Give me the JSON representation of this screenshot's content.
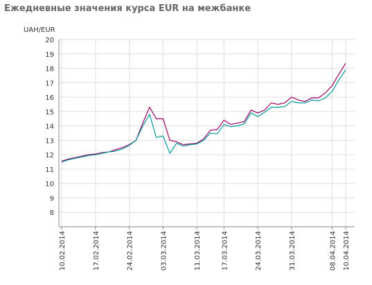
{
  "chart_data": {
    "type": "line",
    "title": "Ежедневные значения курса EUR на межбанке",
    "y_label": "UAH/EUR",
    "categories": [
      "10.02.2014",
      null,
      null,
      null,
      null,
      "17.02.2014",
      null,
      null,
      null,
      null,
      "24.02.2014",
      null,
      null,
      null,
      null,
      "03.03.2014",
      null,
      null,
      null,
      null,
      "11.03.2014",
      null,
      null,
      null,
      "17.03.2014",
      null,
      null,
      null,
      null,
      "24.03.2014",
      null,
      null,
      null,
      null,
      "31.03.2014",
      null,
      null,
      null,
      null,
      null,
      "08.04.2014",
      null,
      "10.04.2014"
    ],
    "series": [
      {
        "color": "#990066",
        "values": [
          11.55,
          11.7,
          11.8,
          11.9,
          12.0,
          12.05,
          12.15,
          12.2,
          12.35,
          12.5,
          12.7,
          13.0,
          14.2,
          15.3,
          14.5,
          14.5,
          13.0,
          12.9,
          12.7,
          12.75,
          12.8,
          13.1,
          13.7,
          13.75,
          14.4,
          14.1,
          14.2,
          14.3,
          15.1,
          14.9,
          15.1,
          15.6,
          15.5,
          15.6,
          16.0,
          15.8,
          15.7,
          15.95,
          15.95,
          16.3,
          16.8,
          17.6,
          18.35
        ]
      },
      {
        "color": "#009999",
        "values": [
          11.5,
          11.65,
          11.75,
          11.85,
          11.95,
          12.0,
          12.1,
          12.2,
          12.25,
          12.4,
          12.65,
          13.0,
          14.0,
          14.8,
          13.2,
          13.3,
          12.1,
          12.8,
          12.6,
          12.7,
          12.75,
          13.0,
          13.5,
          13.45,
          14.1,
          13.95,
          14.0,
          14.15,
          14.9,
          14.65,
          14.95,
          15.3,
          15.3,
          15.35,
          15.7,
          15.6,
          15.6,
          15.8,
          15.75,
          15.95,
          16.4,
          17.2,
          17.9
        ]
      }
    ],
    "ylim": [
      7,
      20
    ],
    "yticks": [
      8,
      9,
      10,
      11,
      12,
      13,
      14,
      15,
      16,
      17,
      18,
      19,
      20
    ],
    "grid": true
  }
}
